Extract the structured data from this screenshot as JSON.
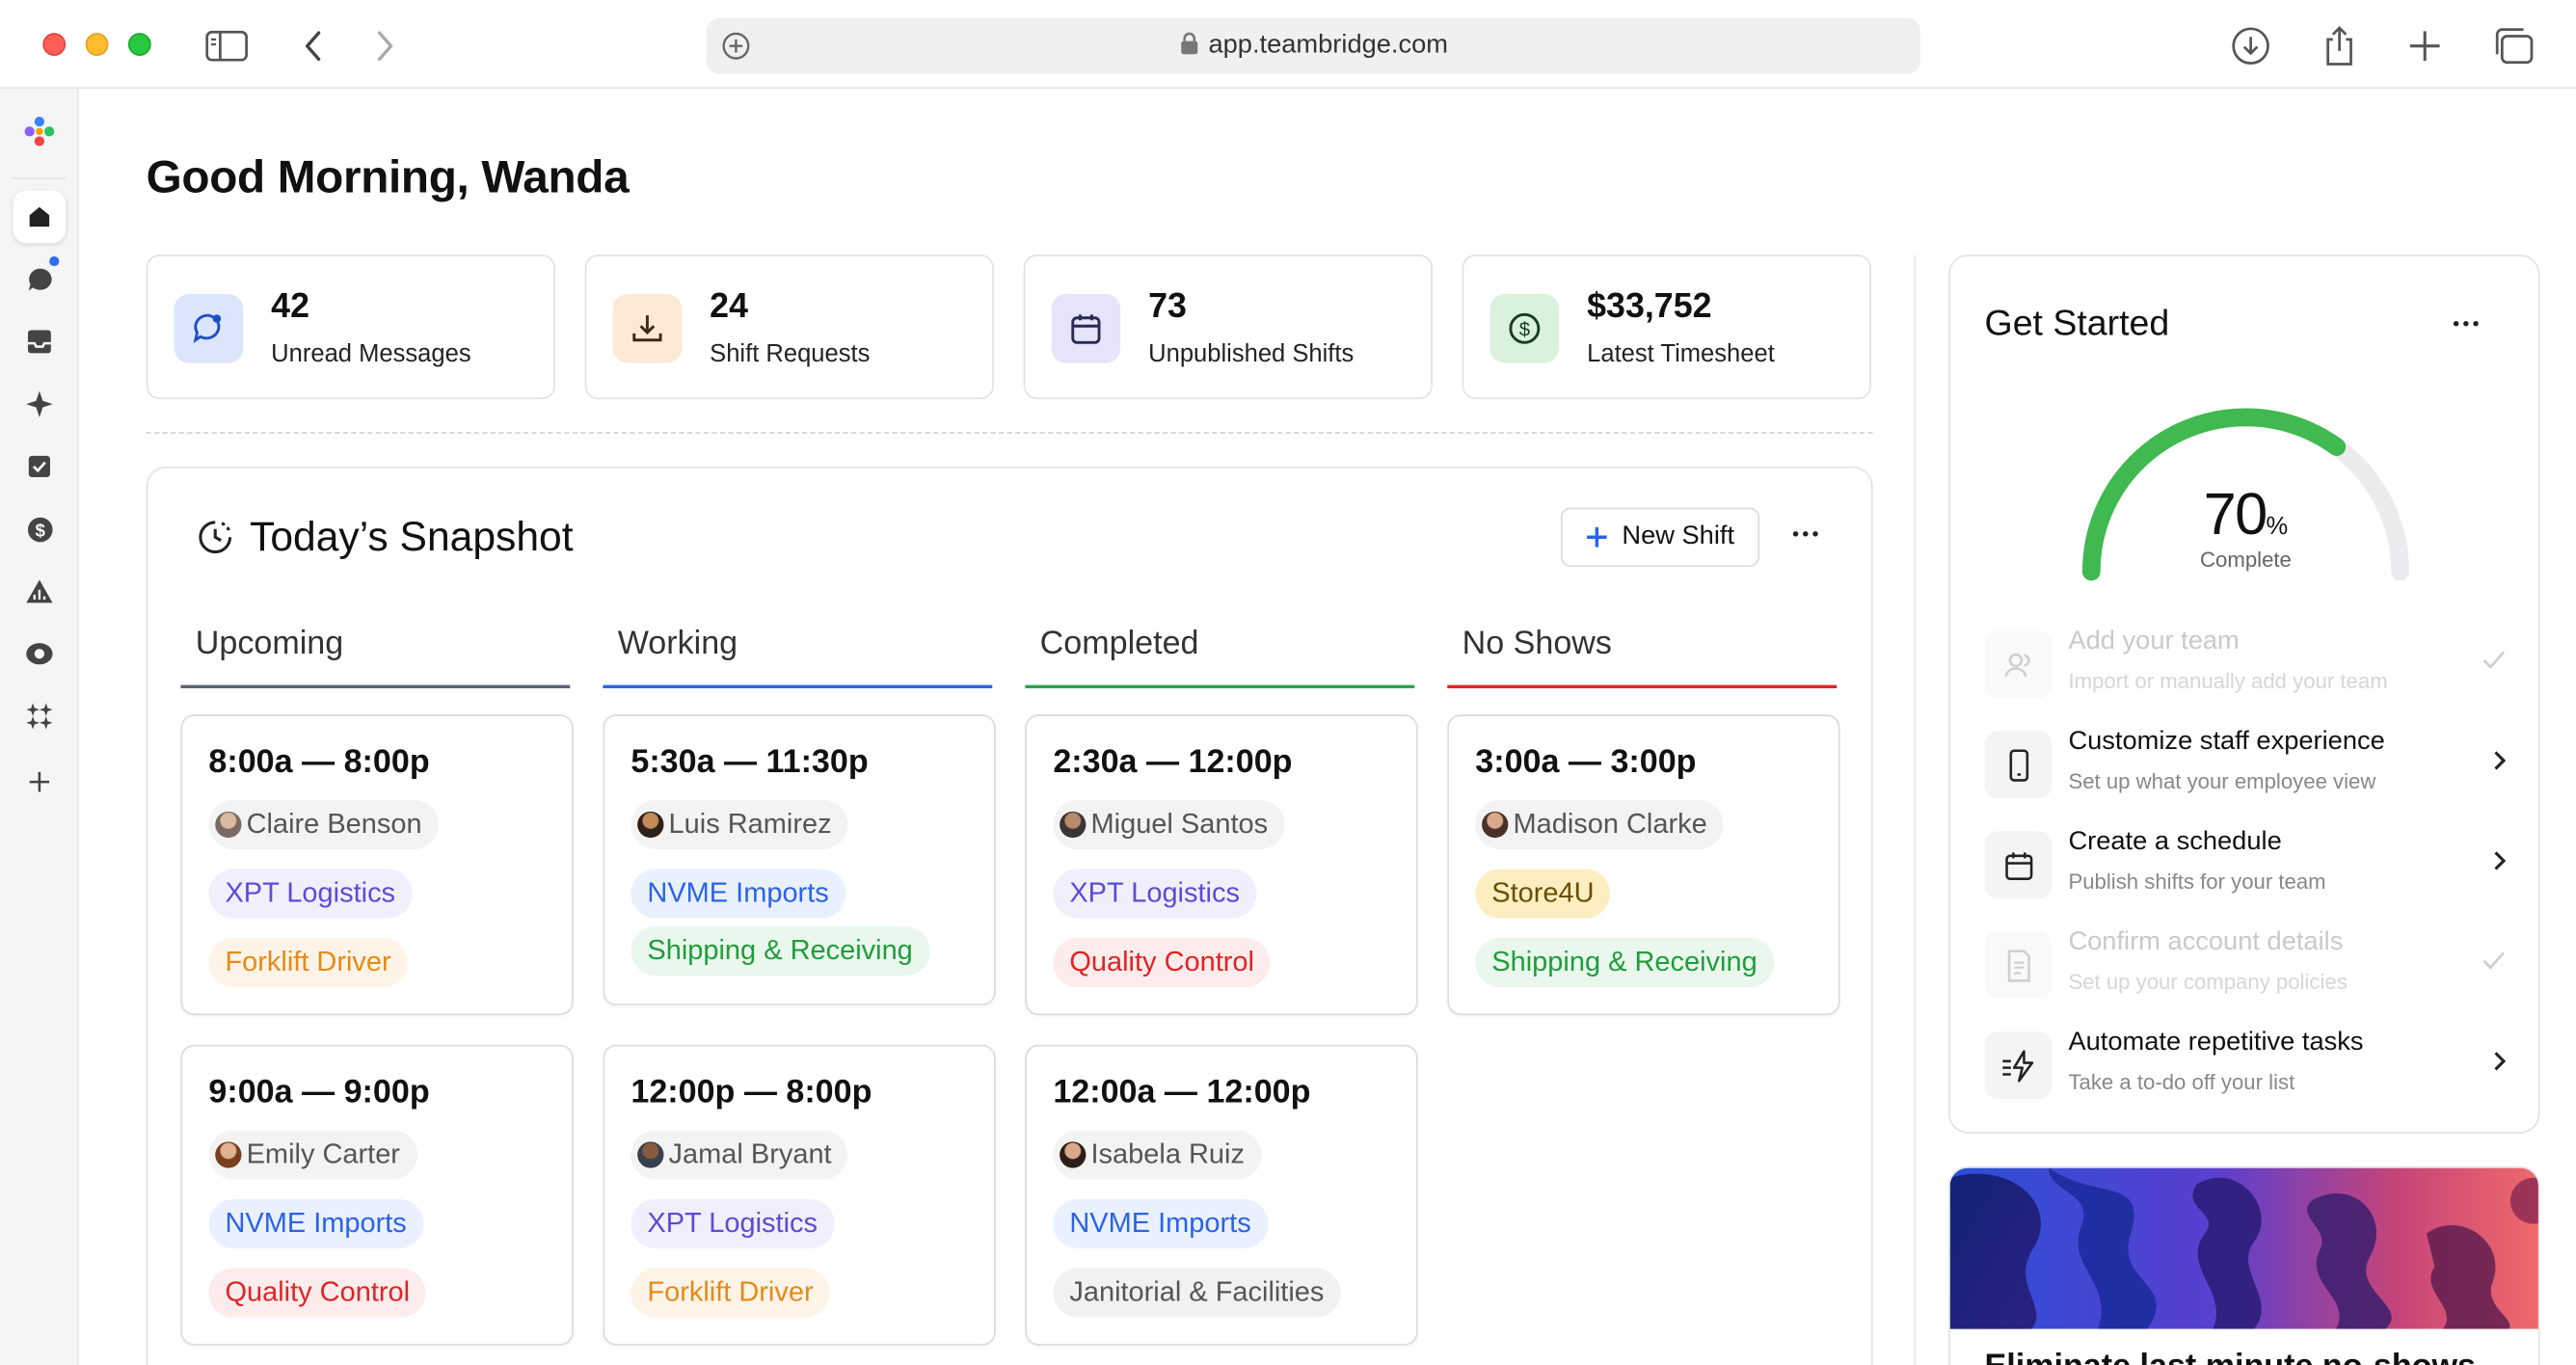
{
  "browser": {
    "url": "app.teambridge.com"
  },
  "greeting": "Good Morning, Wanda",
  "stats": [
    {
      "value": "42",
      "label": "Unread Messages",
      "icon": "message-icon",
      "color": "#dbe6fd"
    },
    {
      "value": "24",
      "label": "Shift Requests",
      "icon": "download-icon",
      "color": "#fde9d6"
    },
    {
      "value": "73",
      "label": "Unpublished Shifts",
      "icon": "calendar-icon",
      "color": "#e6e3fb"
    },
    {
      "value": "$33,752",
      "label": "Latest Timesheet",
      "icon": "dollar-icon",
      "color": "#daf1de"
    }
  ],
  "snapshot": {
    "title": "Today’s Snapshot",
    "new_shift_label": "New Shift",
    "columns": [
      {
        "label": "Upcoming",
        "color": "#5e6270"
      },
      {
        "label": "Working",
        "color": "#2a63e8"
      },
      {
        "label": "Completed",
        "color": "#2da44e"
      },
      {
        "label": "No Shows",
        "color": "#e02424"
      }
    ],
    "cards": [
      {
        "time": "8:00a — 8:00p",
        "person": "Claire Benson",
        "tags": [
          "XPT Logistics",
          "Forklift Driver"
        ]
      },
      {
        "time": "5:30a — 11:30p",
        "person": "Luis Ramirez",
        "tags": [
          "NVME Imports",
          "Shipping & Receiving"
        ]
      },
      {
        "time": "2:30a — 12:00p",
        "person": "Miguel Santos",
        "tags": [
          "XPT Logistics",
          "Quality Control"
        ]
      },
      {
        "time": "3:00a — 3:00p",
        "person": "Madison Clarke",
        "tags": [
          "Store4U",
          "Shipping & Receiving"
        ]
      },
      {
        "time": "9:00a — 9:00p",
        "person": "Emily Carter",
        "tags": [
          "NVME Imports",
          "Quality Control"
        ]
      },
      {
        "time": "12:00p — 8:00p",
        "person": "Jamal Bryant",
        "tags": [
          "XPT Logistics",
          "Forklift Driver"
        ]
      },
      {
        "time": "12:00a — 12:00p",
        "person": "Isabela Ruiz",
        "tags": [
          "NVME Imports",
          "Janitorial & Facilities"
        ]
      }
    ]
  },
  "get_started": {
    "title": "Get Started",
    "progress_value": "70",
    "progress_unit": "%",
    "progress_fraction": 0.7,
    "progress_label": "Complete",
    "accent": "#3fb950",
    "tasks": [
      {
        "title": "Add your team",
        "subtitle": "Import or manually add your team",
        "done": true,
        "icon": "users-icon"
      },
      {
        "title": "Customize staff experience",
        "subtitle": "Set up what your employee view",
        "done": false,
        "icon": "phone-icon"
      },
      {
        "title": "Create a schedule",
        "subtitle": "Publish shifts for your team",
        "done": false,
        "icon": "calendar-icon"
      },
      {
        "title": "Confirm account details",
        "subtitle": "Set up your company policies",
        "done": true,
        "icon": "document-icon"
      },
      {
        "title": "Automate repetitive tasks",
        "subtitle": "Take a to-do off your list",
        "done": false,
        "icon": "lightning-icon"
      }
    ]
  },
  "promo": {
    "title": "Eliminate last minute no-shows"
  }
}
